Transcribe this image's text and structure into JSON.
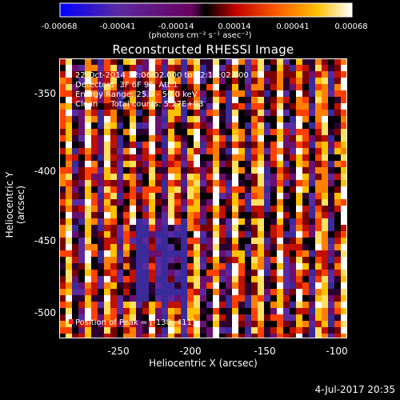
{
  "colorbar": {
    "ticks": [
      "-0.00068",
      "-0.00041",
      "-0.00014",
      "0.00014",
      "0.00041",
      "0.00068"
    ],
    "units": "(photons cm⁻² s⁻¹ asec⁻²)"
  },
  "image": {
    "title": "Reconstructed RHESSI Image",
    "info_lines": [
      "22-Oct-2014 12:06:02.000 to 12:16:02.000",
      "Detectors: 3F 6F 9F, Att 1",
      "Energy Range: 25.0 - 50.0 keV",
      "Clean     Total counts: 5.27E+03"
    ],
    "peak_label": "Position of Peak = [-130,-411]"
  },
  "axes": {
    "xlabel": "Heliocentric X (arcsec)",
    "ylabel": "Heliocentric Y (arcsec)",
    "xticks": [
      "-250",
      "-200",
      "-150",
      "-100"
    ],
    "yticks": [
      "-350",
      "-400",
      "-450",
      "-500"
    ]
  },
  "footer": {
    "timestamp": "4-Jul-2017 20:35"
  }
}
